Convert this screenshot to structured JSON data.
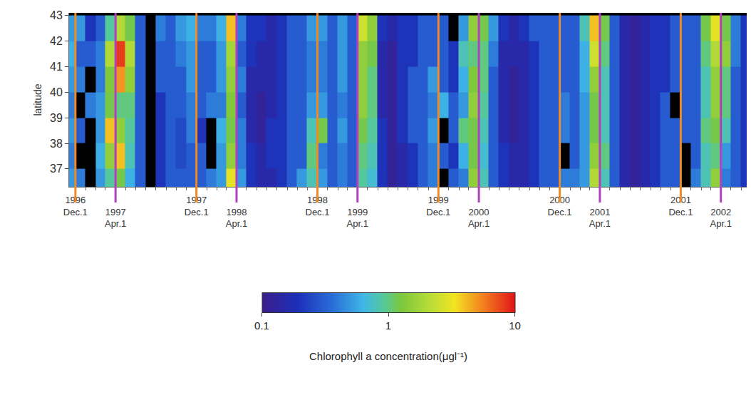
{
  "chart_data": {
    "type": "heatmap",
    "y_label": "latitude",
    "x": [
      "1996-11-15",
      "1996-12-15",
      "1997-01-15",
      "1997-02-15",
      "1997-03-15",
      "1997-04-15",
      "1997-05-15",
      "1997-06-15",
      "1997-07-15",
      "1997-08-15",
      "1997-09-15",
      "1997-10-15",
      "1997-11-15",
      "1997-12-15",
      "1998-01-15",
      "1998-02-15",
      "1998-03-15",
      "1998-04-15",
      "1998-05-15",
      "1998-06-15",
      "1998-07-15",
      "1998-08-15",
      "1998-09-15",
      "1998-10-15",
      "1998-11-15",
      "1998-12-15",
      "1999-01-15",
      "1999-02-15",
      "1999-03-15",
      "1999-04-15",
      "1999-05-15",
      "1999-06-15",
      "1999-07-15",
      "1999-08-15",
      "1999-09-15",
      "1999-10-15",
      "1999-11-15",
      "1999-12-15",
      "2000-01-15",
      "2000-02-15",
      "2000-03-15",
      "2000-04-15",
      "2000-05-15",
      "2000-06-15",
      "2000-07-15",
      "2000-08-15",
      "2000-09-15",
      "2000-10-15",
      "2000-11-15",
      "2000-12-15",
      "2001-01-15",
      "2001-02-15",
      "2001-03-15",
      "2001-04-15",
      "2001-05-15",
      "2001-06-15",
      "2001-07-15",
      "2001-08-15",
      "2001-09-15",
      "2001-10-15",
      "2001-11-15",
      "2001-12-15",
      "2002-01-15",
      "2002-02-15",
      "2002-03-15",
      "2002-04-15",
      "2002-05-15",
      "2002-06-15"
    ],
    "y": [
      36.5,
      37.5,
      38.5,
      39.5,
      40.5,
      41.5,
      42.5
    ],
    "cells": [
      [
        0.5,
        0.4,
        0.5,
        0.4,
        0.5,
        0.6,
        0.5
      ],
      [
        0.4,
        null,
        0.3,
        null,
        0.4,
        0.3,
        0.5
      ],
      [
        null,
        null,
        null,
        0.4,
        null,
        0.3,
        0.2
      ],
      [
        0.5,
        0.6,
        0.5,
        0.5,
        0.4,
        0.4,
        0.3
      ],
      [
        0.9,
        1.5,
        4,
        1.2,
        1.3,
        2,
        0.9
      ],
      [
        1.2,
        4,
        1.5,
        1,
        5,
        8,
        2
      ],
      [
        0.6,
        0.8,
        0.9,
        1,
        1.5,
        2,
        1.2
      ],
      [
        0.3,
        0.3,
        0.3,
        0.3,
        0.3,
        0.3,
        0.3
      ],
      [
        null,
        null,
        null,
        null,
        null,
        null,
        null
      ],
      [
        0.2,
        0.2,
        0.2,
        0.2,
        0.3,
        0.3,
        0.4
      ],
      [
        0.3,
        0.3,
        0.3,
        0.3,
        0.3,
        0.3,
        0.3
      ],
      [
        0.3,
        0.25,
        0.25,
        0.3,
        0.3,
        0.4,
        0.5
      ],
      [
        0.3,
        0.3,
        0.4,
        0.4,
        0.5,
        0.5,
        0.6
      ],
      [
        0.3,
        0.3,
        0.2,
        0.3,
        0.3,
        0.3,
        0.4
      ],
      [
        0.4,
        null,
        null,
        0.4,
        0.3,
        0.3,
        0.4
      ],
      [
        0.5,
        0.5,
        0.6,
        0.4,
        0.5,
        0.5,
        0.6
      ],
      [
        3,
        1.5,
        1.2,
        1.3,
        1.5,
        1.8,
        4
      ],
      [
        0.5,
        0.4,
        0.4,
        0.3,
        0.4,
        0.3,
        0.4
      ],
      [
        0.2,
        0.2,
        0.15,
        0.15,
        0.15,
        0.2,
        0.2
      ],
      [
        0.15,
        0.15,
        0.12,
        0.12,
        0.15,
        0.15,
        0.2
      ],
      [
        0.15,
        0.2,
        0.2,
        0.15,
        0.15,
        0.15,
        0.15
      ],
      [
        0.2,
        0.2,
        0.2,
        0.2,
        0.2,
        0.2,
        0.2
      ],
      [
        0.3,
        0.3,
        0.3,
        0.3,
        0.3,
        0.3,
        0.3
      ],
      [
        0.5,
        0.3,
        0.3,
        0.3,
        0.3,
        0.3,
        0.3
      ],
      [
        0.8,
        1,
        0.8,
        0.5,
        0.4,
        0.4,
        0.5
      ],
      [
        0.5,
        0.4,
        1.2,
        0.5,
        0.4,
        0.4,
        0.5
      ],
      [
        0.3,
        0.3,
        0.3,
        0.3,
        0.3,
        0.3,
        0.3
      ],
      [
        0.4,
        0.4,
        0.5,
        0.4,
        0.5,
        0.5,
        0.5
      ],
      [
        0.3,
        0.3,
        0.3,
        0.3,
        0.3,
        0.3,
        0.3
      ],
      [
        0.9,
        1,
        1.2,
        1.5,
        1.5,
        1.5,
        2.5
      ],
      [
        0.7,
        0.8,
        0.9,
        1,
        1,
        1.2,
        1.5
      ],
      [
        0.2,
        0.2,
        0.2,
        0.15,
        0.15,
        0.15,
        0.2
      ],
      [
        0.12,
        0.12,
        0.12,
        0.12,
        0.12,
        0.12,
        0.15
      ],
      [
        0.15,
        0.15,
        0.2,
        0.2,
        0.2,
        0.2,
        0.2
      ],
      [
        0.2,
        0.2,
        0.3,
        0.3,
        0.3,
        0.2,
        0.2
      ],
      [
        0.3,
        0.3,
        0.3,
        0.3,
        0.3,
        0.3,
        0.3
      ],
      [
        0.4,
        0.4,
        0.5,
        0.4,
        0.5,
        0.3,
        0.3
      ],
      [
        null,
        0.3,
        null,
        0.6,
        0.3,
        0.3,
        0.3
      ],
      [
        0.3,
        0.2,
        0.3,
        0.3,
        0.2,
        0.2,
        null
      ],
      [
        0.4,
        0.6,
        1,
        0.5,
        0.6,
        0.8,
        0.5
      ],
      [
        1.5,
        1.2,
        1.2,
        1.5,
        1.3,
        1,
        1.5
      ],
      [
        0.8,
        0.7,
        0.8,
        0.9,
        1,
        1,
        1.2
      ],
      [
        0.3,
        0.3,
        0.3,
        0.3,
        0.3,
        0.4,
        0.5
      ],
      [
        0.2,
        0.2,
        0.15,
        0.15,
        0.15,
        0.15,
        0.2
      ],
      [
        0.15,
        0.15,
        0.12,
        0.12,
        0.12,
        0.15,
        0.15
      ],
      [
        0.15,
        0.15,
        0.15,
        0.15,
        0.15,
        0.15,
        0.2
      ],
      [
        0.2,
        0.2,
        0.2,
        0.2,
        0.2,
        0.2,
        0.3
      ],
      [
        0.3,
        0.3,
        0.3,
        0.3,
        0.3,
        0.3,
        0.3
      ],
      [
        0.3,
        0.3,
        0.3,
        0.3,
        0.3,
        0.3,
        0.3
      ],
      [
        0.4,
        null,
        0.4,
        0.4,
        0.3,
        0.3,
        0.3
      ],
      [
        0.4,
        0.3,
        0.3,
        0.3,
        0.3,
        0.3,
        0.3
      ],
      [
        0.5,
        0.5,
        0.5,
        0.5,
        0.6,
        0.6,
        0.8
      ],
      [
        2,
        1.5,
        1.2,
        1.2,
        1.5,
        2.5,
        4
      ],
      [
        0.8,
        1,
        0.8,
        0.8,
        0.8,
        1,
        1.2
      ],
      [
        0.3,
        0.3,
        0.3,
        0.3,
        0.3,
        0.3,
        0.3
      ],
      [
        0.15,
        0.15,
        0.15,
        0.15,
        0.15,
        0.15,
        0.15
      ],
      [
        0.12,
        0.12,
        0.12,
        0.12,
        0.12,
        0.12,
        0.12
      ],
      [
        0.15,
        0.15,
        0.15,
        0.15,
        0.15,
        0.15,
        0.15
      ],
      [
        0.2,
        0.2,
        0.2,
        0.2,
        0.2,
        0.2,
        0.2
      ],
      [
        0.3,
        0.3,
        0.3,
        0.3,
        0.2,
        0.2,
        0.2
      ],
      [
        0.3,
        0.3,
        0.3,
        null,
        0.3,
        0.3,
        0.3
      ],
      [
        null,
        null,
        0.3,
        0.3,
        0.3,
        0.3,
        0.3
      ],
      [
        0.4,
        0.3,
        0.3,
        0.3,
        0.3,
        0.3,
        0.3
      ],
      [
        0.8,
        0.8,
        1,
        0.8,
        0.8,
        1,
        1.2
      ],
      [
        1.5,
        1,
        1.2,
        1.5,
        1.5,
        2,
        3
      ],
      [
        0.4,
        0.5,
        0.8,
        1,
        1,
        1.5,
        1.2
      ],
      [
        0.3,
        0.3,
        0.3,
        0.3,
        0.3,
        0.4,
        0.4
      ],
      [
        0.2,
        0.2,
        0.2,
        0.2,
        0.2,
        0.2,
        0.2
      ]
    ],
    "xlim": [
      "1996-11-12",
      "2002-06-18"
    ],
    "xticks": [
      {
        "value": "1996-12-01",
        "label": "1996 Dec.1"
      },
      {
        "value": "1997-04-01",
        "label": "1997 Apr.1"
      },
      {
        "value": "1997-12-01",
        "label": "1997 Dec.1"
      },
      {
        "value": "1998-04-01",
        "label": "1998 Apr.1"
      },
      {
        "value": "1998-12-01",
        "label": "1998 Dec.1"
      },
      {
        "value": "1999-04-01",
        "label": "1999 Apr.1"
      },
      {
        "value": "1999-12-01",
        "label": "1999 Dec.1"
      },
      {
        "value": "2000-04-01",
        "label": "2000 Apr.1"
      },
      {
        "value": "2000-12-01",
        "label": "2000 Dec.1"
      },
      {
        "value": "2001-04-01",
        "label": "2001 Apr.1"
      },
      {
        "value": "2001-12-01",
        "label": "2001 Dec.1"
      },
      {
        "value": "2002-04-01",
        "label": "2002 Apr.1"
      }
    ],
    "ylim": [
      36.3,
      43.1
    ],
    "yticks": [
      37,
      38,
      39,
      40,
      41,
      42,
      43
    ],
    "colorbar": {
      "title": "Chlorophyll a concentration(μgl⁻¹)",
      "range": [
        0.1,
        10
      ],
      "ticks": [
        0.1,
        1,
        10
      ],
      "log": true
    }
  }
}
